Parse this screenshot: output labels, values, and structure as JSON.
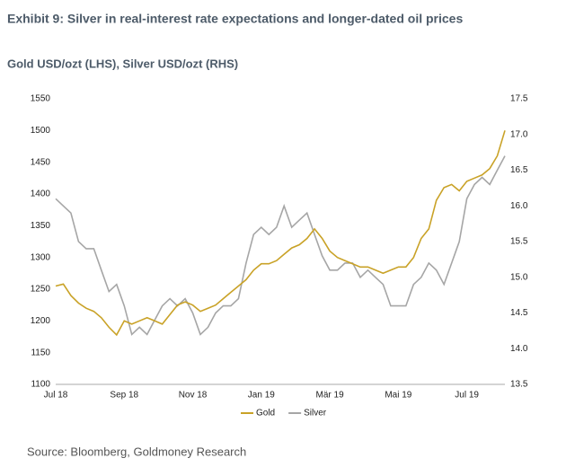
{
  "chart_data": {
    "type": "line",
    "title": "Exhibit 9: Silver in real-interest rate expectations and longer-dated oil prices",
    "subtitle": "Gold USD/ozt (LHS), Silver USD/ozt (RHS)",
    "source": "Source: Bloomberg, Goldmoney Research",
    "categories": [
      "Jul 18",
      null,
      null,
      null,
      null,
      null,
      null,
      null,
      null,
      "Sep 18",
      null,
      null,
      null,
      null,
      null,
      null,
      null,
      null,
      "Nov 18",
      null,
      null,
      null,
      null,
      null,
      null,
      null,
      null,
      "Jan 19",
      null,
      null,
      null,
      null,
      null,
      null,
      null,
      null,
      "Mär 19",
      null,
      null,
      null,
      null,
      null,
      null,
      null,
      null,
      "Mai 19",
      null,
      null,
      null,
      null,
      null,
      null,
      null,
      null,
      "Jul 19",
      null,
      null,
      null,
      null,
      null
    ],
    "series": [
      {
        "name": "Gold",
        "color": "#c9a227",
        "axis": "y",
        "values": [
          1255,
          1258,
          1240,
          1228,
          1220,
          1215,
          1205,
          1190,
          1178,
          1200,
          1195,
          1200,
          1205,
          1200,
          1195,
          1210,
          1225,
          1230,
          1225,
          1215,
          1220,
          1225,
          1235,
          1245,
          1255,
          1265,
          1280,
          1290,
          1290,
          1295,
          1305,
          1315,
          1320,
          1330,
          1345,
          1330,
          1310,
          1300,
          1295,
          1290,
          1285,
          1285,
          1280,
          1275,
          1280,
          1285,
          1285,
          1300,
          1330,
          1345,
          1390,
          1410,
          1415,
          1405,
          1420,
          1425,
          1430,
          1440,
          1460,
          1500
        ]
      },
      {
        "name": "Silver",
        "color": "#a6a6a6",
        "axis": "y2",
        "values": [
          16.1,
          16.0,
          15.9,
          15.5,
          15.4,
          15.4,
          15.1,
          14.8,
          14.9,
          14.6,
          14.2,
          14.3,
          14.2,
          14.4,
          14.6,
          14.7,
          14.6,
          14.7,
          14.5,
          14.2,
          14.3,
          14.5,
          14.6,
          14.6,
          14.7,
          15.2,
          15.6,
          15.7,
          15.6,
          15.7,
          16.0,
          15.7,
          15.8,
          15.9,
          15.6,
          15.3,
          15.1,
          15.1,
          15.2,
          15.2,
          15.0,
          15.1,
          15.0,
          14.9,
          14.6,
          14.6,
          14.6,
          14.9,
          15.0,
          15.2,
          15.1,
          14.9,
          15.2,
          15.5,
          16.1,
          16.3,
          16.4,
          16.3,
          16.5,
          16.7
        ]
      }
    ],
    "ylim": [
      1100,
      1550
    ],
    "yticks": [
      1100,
      1150,
      1200,
      1250,
      1300,
      1350,
      1400,
      1450,
      1500,
      1550
    ],
    "y2lim": [
      13.5,
      17.5
    ],
    "y2ticks": [
      13.5,
      {
        "value": 14,
        "label": "14.0"
      },
      14.5,
      {
        "value": 15,
        "label": "15.0"
      },
      15.5,
      {
        "value": 16,
        "label": "16.0"
      },
      16.5,
      {
        "value": 17,
        "label": "17.0"
      },
      17.5
    ],
    "grid": false,
    "legend": "bottom"
  }
}
